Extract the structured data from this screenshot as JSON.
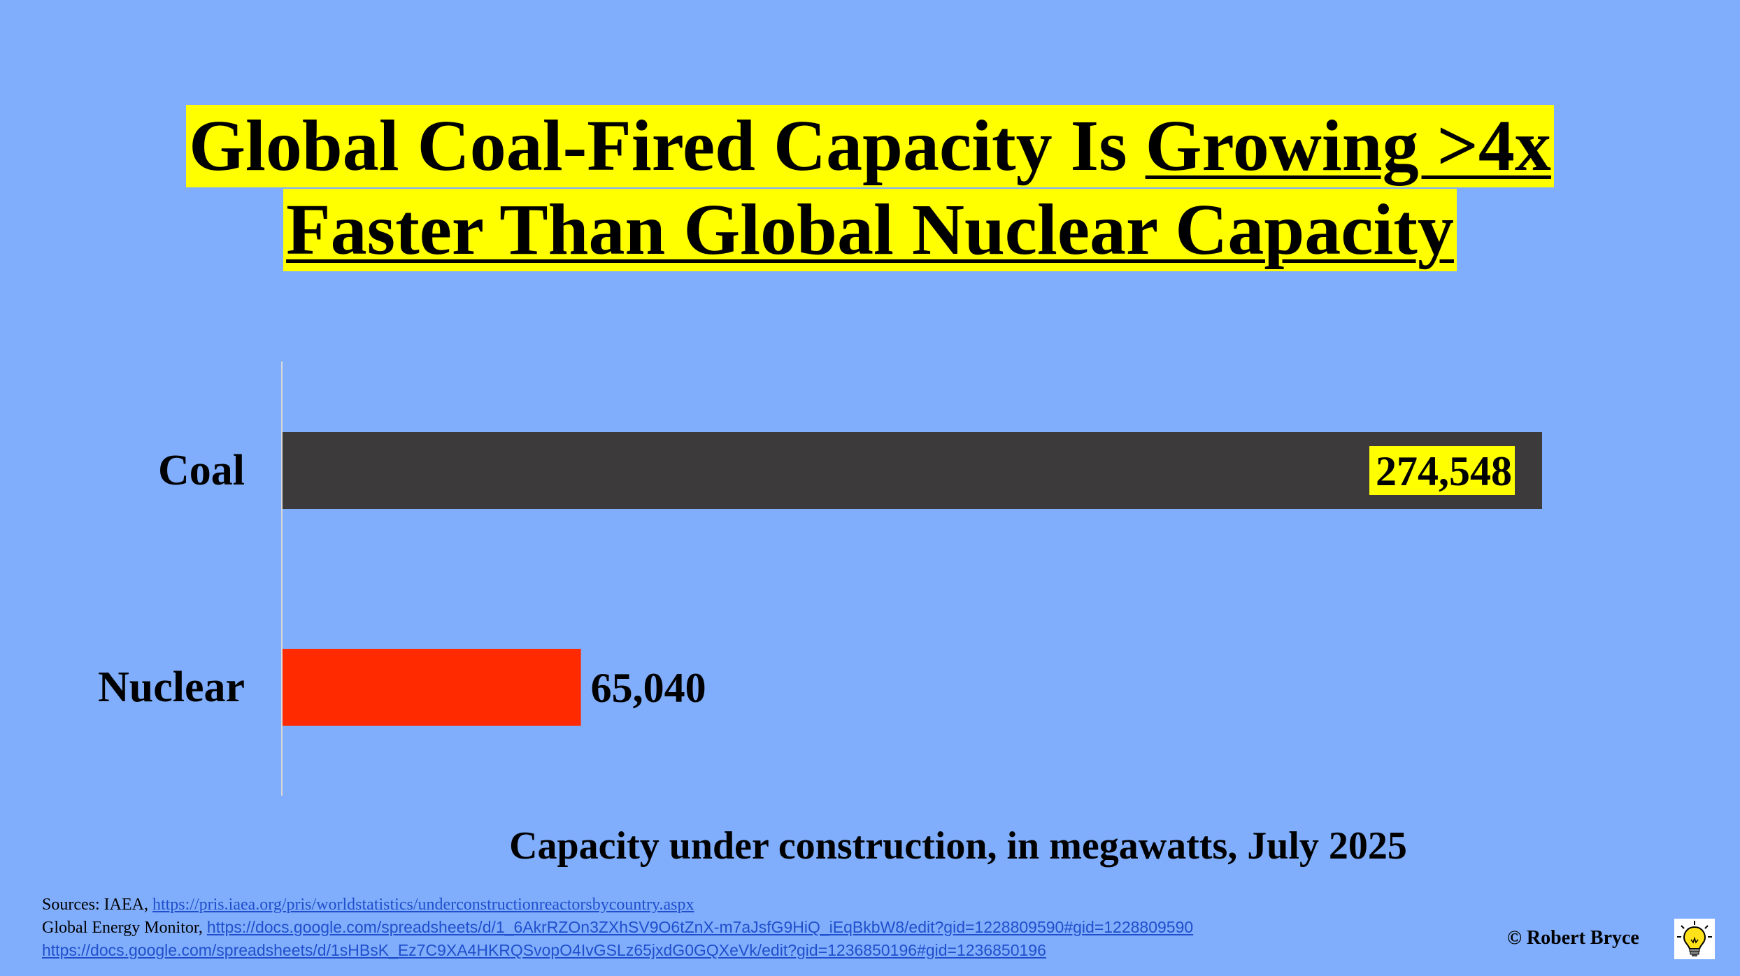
{
  "title": {
    "line1_prefix": "Global Coal-Fired Capacity Is ",
    "line1_underlined": "Growing >4x",
    "line2": "Faster Than Global Nuclear Capacity"
  },
  "chart_data": {
    "type": "bar",
    "orientation": "horizontal",
    "categories": [
      "Coal",
      "Nuclear"
    ],
    "values": [
      274548,
      65040
    ],
    "value_labels": [
      "274,548",
      "65,040"
    ],
    "bar_colors": [
      "#3d3a3b",
      "#ff2a00"
    ],
    "xlabel": "Capacity under construction, in megawatts, July 2025",
    "xlim": [
      0,
      274548
    ],
    "grid": false
  },
  "sources": {
    "line1_prefix": "Sources: IAEA, ",
    "line1_link": "https://pris.iaea.org/pris/worldstatistics/underconstructionreactorsbycountry.aspx",
    "line2_prefix": "Global Energy Monitor, ",
    "line2_link": "https://docs.google.com/spreadsheets/d/1_6AkrRZOn3ZXhSV9O6tZnX-m7aJsfG9HiQ_iEqBkbW8/edit?gid=1228809590#gid=1228809590",
    "line3_link": "https://docs.google.com/spreadsheets/d/1sHBsK_Ez7C9XA4HKRQSvopO4IvGSLz65jxdG0GQXeVk/edit?gid=1236850196#gid=1236850196"
  },
  "credit": "© Robert Bryce",
  "icons": {
    "logo": "lightbulb-icon"
  },
  "colors": {
    "background": "#80aefc",
    "highlight": "#ffff00"
  }
}
